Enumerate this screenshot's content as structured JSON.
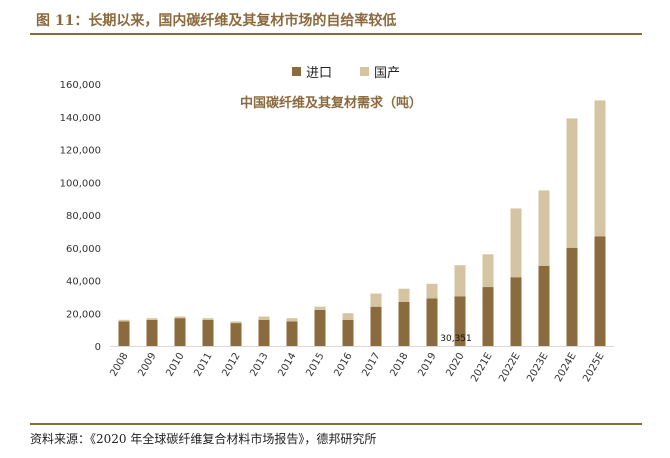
{
  "header": {
    "figure_title": "图 11：长期以来，国内碳纤维及其复材市场的自给率较低"
  },
  "footer": {
    "source": "资料来源：《2020 年全球碳纤维复合材料市场报告》，德邦研究所"
  },
  "colors": {
    "accent": "#8B6A3E",
    "import": "#8B6A3E",
    "domestic": "#D5C4A1"
  },
  "chart_data": {
    "type": "bar",
    "stacked": true,
    "title": "中国碳纤维及其复材需求（吨）",
    "xlabel": "",
    "ylabel": "",
    "categories": [
      "2008",
      "2009",
      "2010",
      "2011",
      "2012",
      "2013",
      "2014",
      "2015",
      "2016",
      "2017",
      "2018",
      "2019",
      "2020",
      "2021E",
      "2022E",
      "2023E",
      "2024E",
      "2025E"
    ],
    "series": [
      {
        "name": "进口",
        "color": "#8B6A3E",
        "values": [
          15000,
          16000,
          17000,
          16000,
          14000,
          16000,
          15000,
          22000,
          16000,
          24000,
          27000,
          29000,
          30351,
          36000,
          42000,
          49000,
          60000,
          67000
        ]
      },
      {
        "name": "国产",
        "color": "#D5C4A1",
        "values": [
          1000,
          1000,
          1000,
          1000,
          1000,
          2000,
          2000,
          2000,
          4000,
          8000,
          8000,
          9000,
          19000,
          20000,
          42000,
          46000,
          79000,
          83000
        ]
      }
    ],
    "ylim": [
      0,
      160000
    ],
    "yticks": [
      0,
      20000,
      40000,
      60000,
      80000,
      100000,
      120000,
      140000,
      160000
    ],
    "ytick_labels": [
      "0",
      "20,000",
      "40,000",
      "60,000",
      "80,000",
      "100,000",
      "120,000",
      "140,000",
      "160,000"
    ],
    "annotations": [
      {
        "category": "2020",
        "text": "30,351"
      }
    ],
    "grid": false,
    "legend_position": "top-center"
  }
}
